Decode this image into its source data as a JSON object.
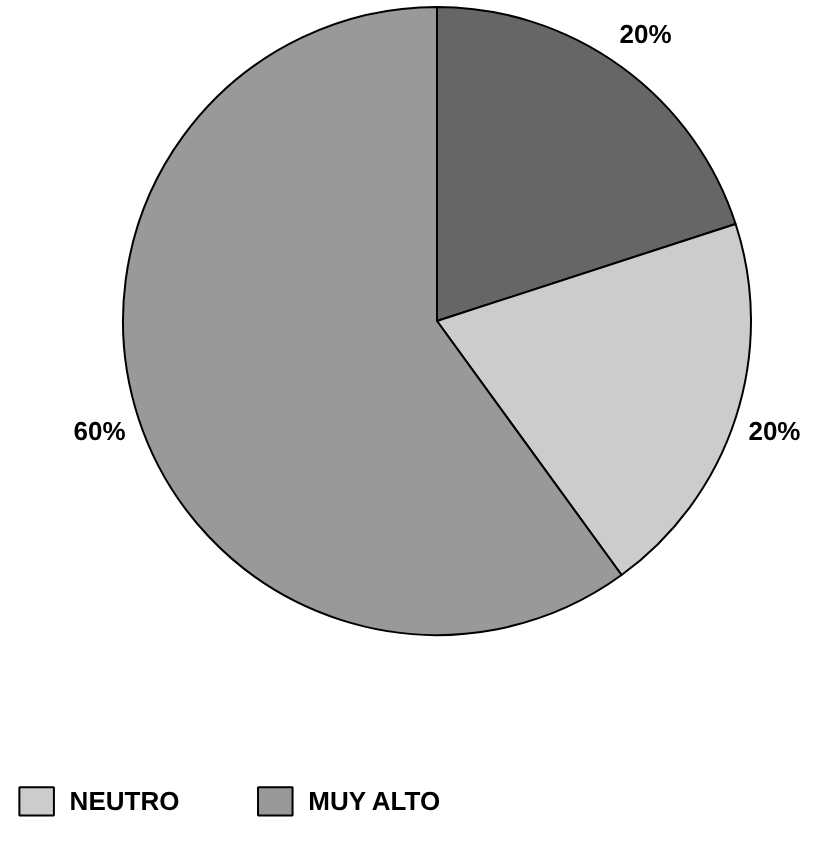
{
  "chart_data": {
    "type": "pie",
    "categories": [
      null,
      "NEUTRO",
      "MUY ALTO"
    ],
    "values": [
      20,
      20,
      60
    ],
    "colors": [
      "#666666",
      "#cccccc",
      "#999999"
    ],
    "value_labels": [
      "20%",
      "20%",
      "60%"
    ],
    "legend": "bottom"
  }
}
